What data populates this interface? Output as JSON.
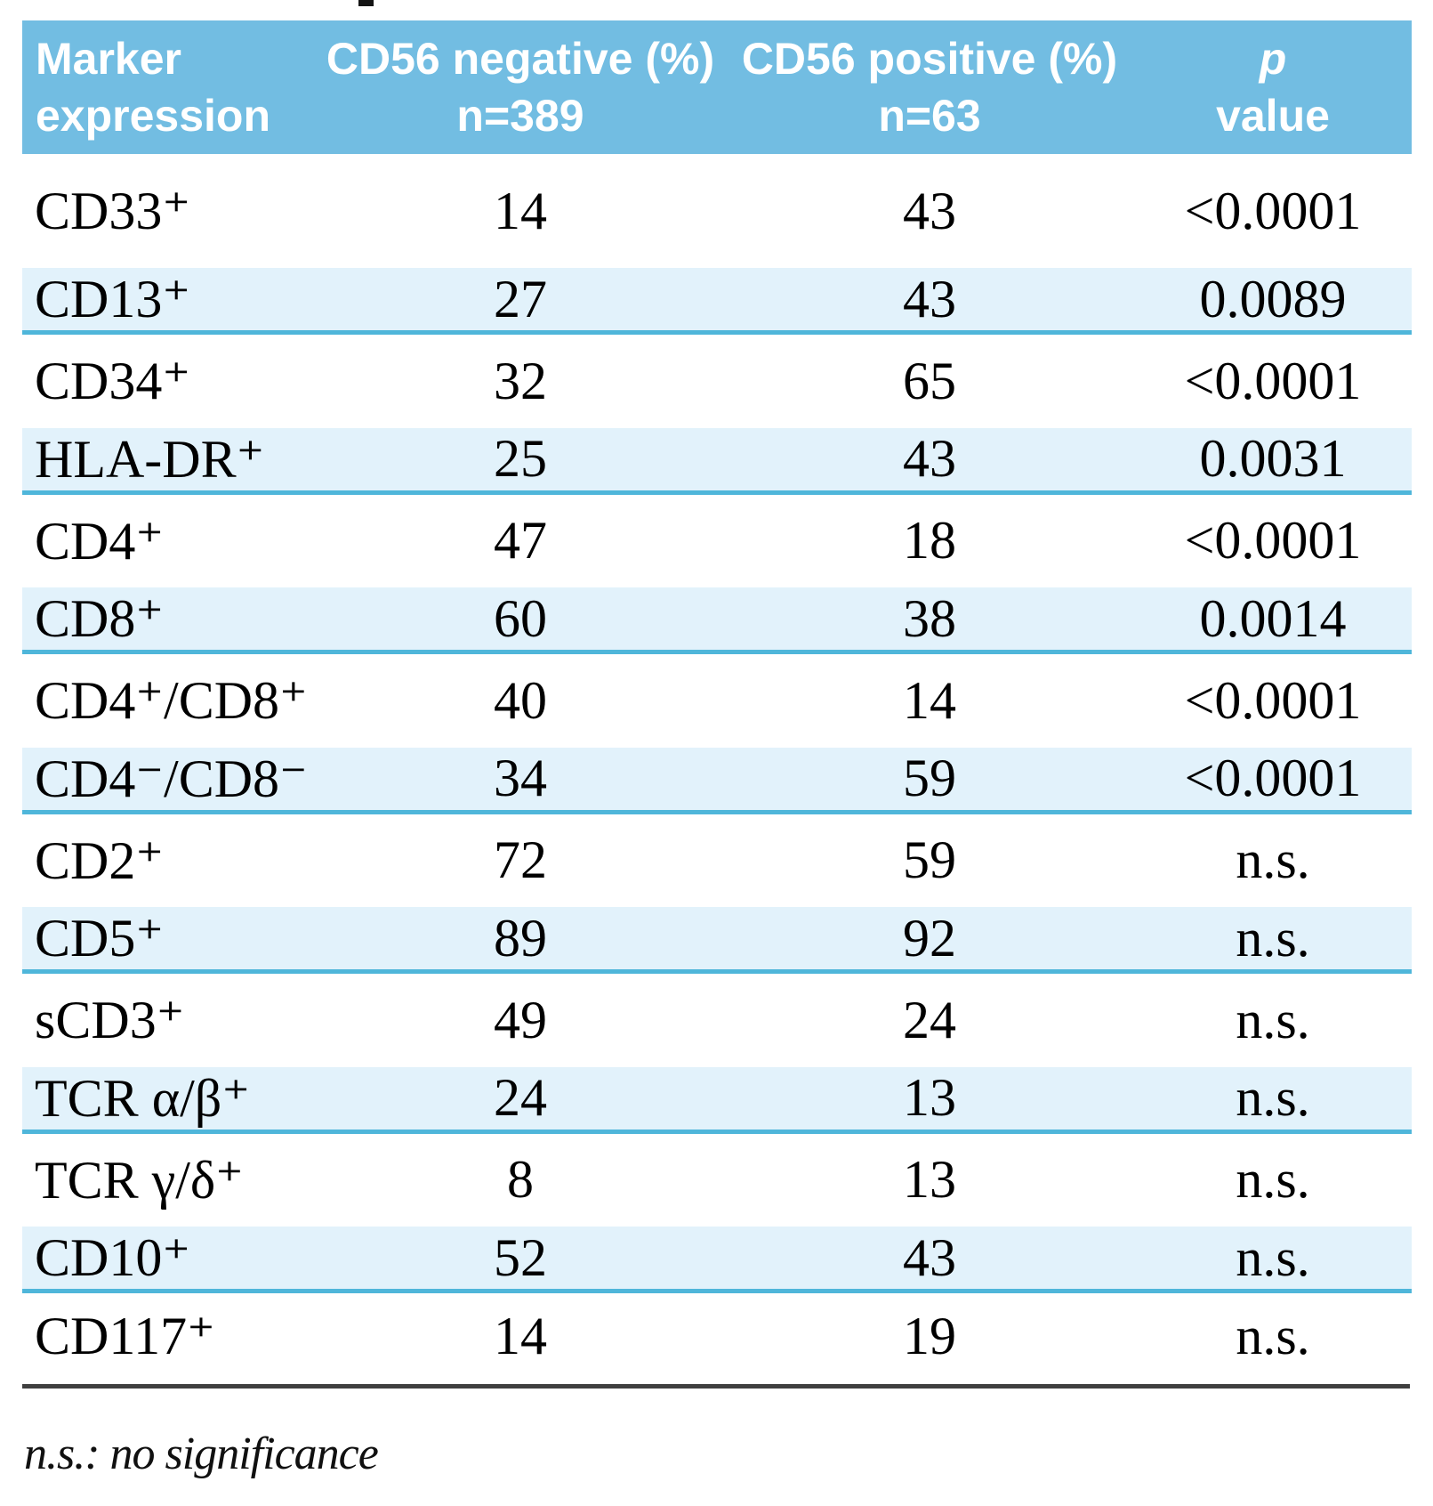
{
  "colors": {
    "header_bg": "#72BDE2",
    "header_text": "#FFFFFF",
    "row_alt_bg": "#E2F2FB",
    "row_divider": "#4FB6DA",
    "bottom_rule": "#3F3F3F",
    "text": "#000000"
  },
  "table": {
    "columns": [
      {
        "line1": "Marker",
        "line2": "expression"
      },
      {
        "line1": "CD56 negative (%)",
        "line2": "n=389"
      },
      {
        "line1": "CD56 positive (%)",
        "line2": "n=63"
      },
      {
        "line1": "p",
        "line2": "value"
      }
    ],
    "rows": [
      {
        "marker": "CD33⁺",
        "cd56_negative": "14",
        "cd56_positive": "43",
        "p_value": "<0.0001"
      },
      {
        "marker": "CD13⁺",
        "cd56_negative": "27",
        "cd56_positive": "43",
        "p_value": "0.0089"
      },
      {
        "marker": "CD34⁺",
        "cd56_negative": "32",
        "cd56_positive": "65",
        "p_value": "<0.0001"
      },
      {
        "marker": "HLA-DR⁺",
        "cd56_negative": "25",
        "cd56_positive": "43",
        "p_value": "0.0031"
      },
      {
        "marker": "CD4⁺",
        "cd56_negative": "47",
        "cd56_positive": "18",
        "p_value": "<0.0001"
      },
      {
        "marker": "CD8⁺",
        "cd56_negative": "60",
        "cd56_positive": "38",
        "p_value": "0.0014"
      },
      {
        "marker": "CD4⁺/CD8⁺",
        "cd56_negative": "40",
        "cd56_positive": "14",
        "p_value": "<0.0001"
      },
      {
        "marker": "CD4⁻/CD8⁻",
        "cd56_negative": "34",
        "cd56_positive": "59",
        "p_value": "<0.0001"
      },
      {
        "marker": "CD2⁺",
        "cd56_negative": "72",
        "cd56_positive": "59",
        "p_value": "n.s."
      },
      {
        "marker": "CD5⁺",
        "cd56_negative": "89",
        "cd56_positive": "92",
        "p_value": "n.s."
      },
      {
        "marker": "sCD3⁺",
        "cd56_negative": "49",
        "cd56_positive": "24",
        "p_value": "n.s."
      },
      {
        "marker": "TCR α/β⁺",
        "cd56_negative": "24",
        "cd56_positive": "13",
        "p_value": "n.s."
      },
      {
        "marker": "TCR γ/δ⁺",
        "cd56_negative": "8",
        "cd56_positive": "13",
        "p_value": "n.s."
      },
      {
        "marker": "CD10⁺",
        "cd56_negative": "52",
        "cd56_positive": "43",
        "p_value": "n.s."
      },
      {
        "marker": "CD117⁺",
        "cd56_negative": "14",
        "cd56_positive": "19",
        "p_value": "n.s."
      }
    ]
  },
  "footnote": "n.s.: no significance"
}
